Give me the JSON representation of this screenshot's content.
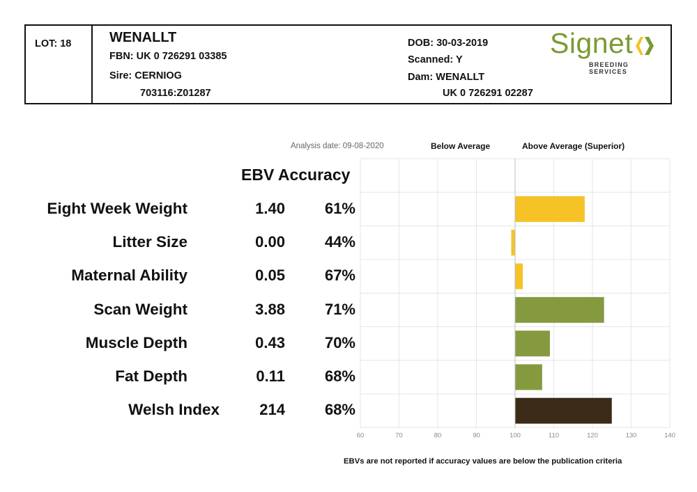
{
  "header": {
    "lot": "LOT: 18",
    "name": "WENALLT",
    "fbn": "FBN: UK 0 726291 03385",
    "sire_label": "Sire: CERNIOG",
    "sire_id": "703116:Z01287",
    "dob": "DOB: 30-03-2019",
    "scanned": "Scanned: Y",
    "dam_label": "Dam: WENALLT",
    "dam_id": "UK 0 726291 02287"
  },
  "logo": {
    "text": "Signet",
    "subtext": "BREEDING SERVICES",
    "icon": "signet-chevrons-icon"
  },
  "columns": {
    "analysis_date": "Analysis date: 09-08-2020",
    "below_average": "Below Average",
    "above_average": "Above Average (Superior)",
    "ebv_accuracy": "EBV Accuracy"
  },
  "rows": [
    {
      "label": "Eight Week Weight",
      "ebv": "1.40",
      "accuracy": "61%"
    },
    {
      "label": "Litter Size",
      "ebv": "0.00",
      "accuracy": "44%"
    },
    {
      "label": "Maternal Ability",
      "ebv": "0.05",
      "accuracy": "67%"
    },
    {
      "label": "Scan Weight",
      "ebv": "3.88",
      "accuracy": "71%"
    },
    {
      "label": "Muscle Depth",
      "ebv": "0.43",
      "accuracy": "70%"
    },
    {
      "label": "Fat Depth",
      "ebv": "0.11",
      "accuracy": "68%"
    },
    {
      "label": "Welsh Index",
      "ebv": "214",
      "accuracy": "68%"
    }
  ],
  "footnote": "EBVs are not reported if accuracy values are below the publication criteria",
  "colors": {
    "yellow": "#f5c326",
    "green": "#859a3f",
    "dark": "#3a2a17",
    "logo_green": "#7c9a32",
    "logo_yellow": "#f5c326"
  },
  "chart_data": {
    "type": "bar",
    "orientation": "horizontal",
    "categories": [
      "Eight Week Weight",
      "Litter Size",
      "Maternal Ability",
      "Scan Weight",
      "Muscle Depth",
      "Fat Depth",
      "Welsh Index"
    ],
    "values": [
      118,
      99,
      102,
      123,
      109,
      107,
      125
    ],
    "baseline": 100,
    "bar_colors": [
      "#f5c326",
      "#f5c326",
      "#f5c326",
      "#859a3f",
      "#859a3f",
      "#859a3f",
      "#3a2a17"
    ],
    "xlim": [
      60,
      140
    ],
    "xticks": [
      "60",
      "70",
      "80",
      "90",
      "100",
      "110",
      "120",
      "130",
      "140"
    ],
    "grid": true
  }
}
